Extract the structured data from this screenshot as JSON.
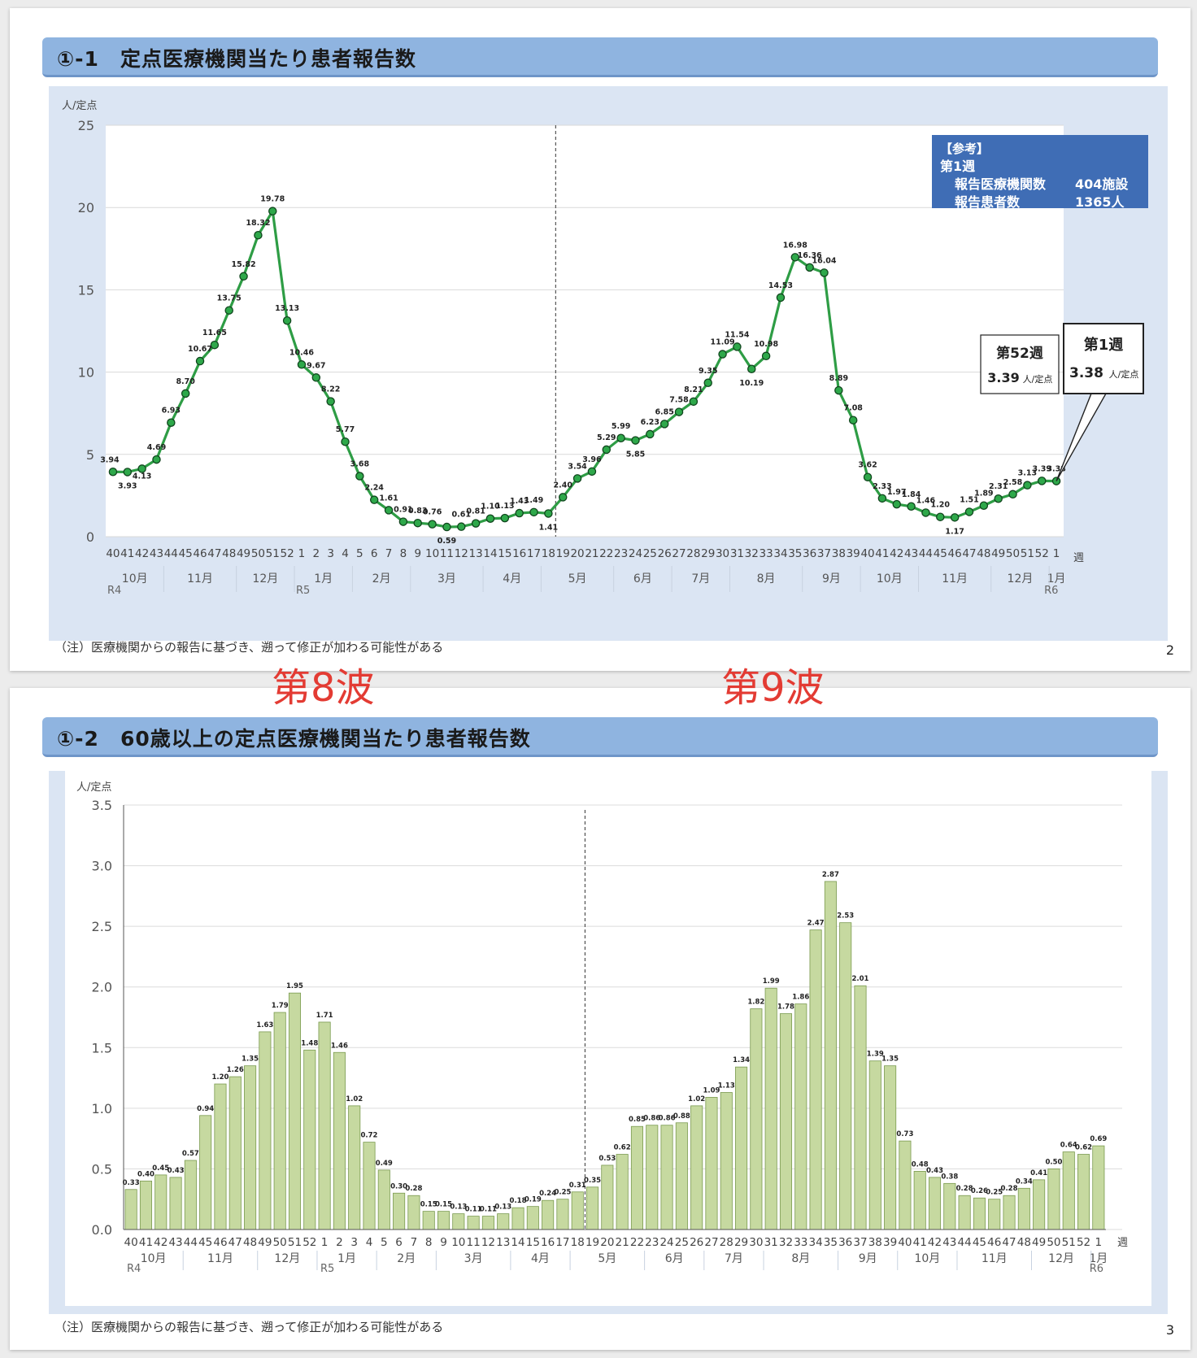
{
  "slide1": {
    "title": "①-1　定点医療機関当たり患者報告数",
    "note": "（注）医療機関からの報告に基づき、遡って修正が加わる可能性がある",
    "page": "2",
    "ref_box": {
      "line1": "【参考】",
      "line2": "第1週",
      "line3_label": "報告医療機関数",
      "line3_value": "404施設",
      "line4_label": "報告患者数",
      "line4_value": "1365人"
    },
    "callout_52": {
      "title": "第52週",
      "value": "3.39",
      "unit": "人/定点"
    },
    "callout_1": {
      "title": "第1週",
      "value": "3.38",
      "unit": "人/定点"
    }
  },
  "slide2": {
    "title": "①-2　60歳以上の定点医療機関当たり患者報告数",
    "note": "（注）医療機関からの報告に基づき、遡って修正が加わる可能性がある",
    "page": "3"
  },
  "waves": {
    "w8": "第8波",
    "w9": "第9波"
  },
  "colors": {
    "line": "#2e9d45",
    "marker": "#1f8a3a",
    "bar_fill": "#c6d9a0",
    "bar_stroke": "#7a9a4f",
    "ref_box": "#3f6db5",
    "wave_text": "#e33b33"
  },
  "chart_data": [
    {
      "type": "line",
      "ylabel": "人/定点",
      "xunit": "週",
      "ylim": [
        0,
        25
      ],
      "yticks": [
        0,
        5,
        10,
        15,
        20,
        25
      ],
      "grid": true,
      "weeks": [
        "40",
        "41",
        "42",
        "43",
        "44",
        "45",
        "46",
        "47",
        "48",
        "49",
        "50",
        "51",
        "52",
        "1",
        "2",
        "3",
        "4",
        "5",
        "6",
        "7",
        "8",
        "9",
        "10",
        "11",
        "12",
        "13",
        "14",
        "15",
        "16",
        "17",
        "18",
        "19",
        "20",
        "21",
        "22",
        "23",
        "24",
        "25",
        "26",
        "27",
        "28",
        "29",
        "30",
        "31",
        "32",
        "33",
        "34",
        "35",
        "36",
        "37",
        "38",
        "39",
        "40",
        "41",
        "42",
        "43",
        "44",
        "45",
        "46",
        "47",
        "48",
        "49",
        "50",
        "51",
        "52",
        "1"
      ],
      "values": [
        3.94,
        3.93,
        4.13,
        4.69,
        6.93,
        8.7,
        10.67,
        11.65,
        13.75,
        15.82,
        18.32,
        19.78,
        13.13,
        10.46,
        9.67,
        8.22,
        5.77,
        3.68,
        2.24,
        1.61,
        0.91,
        0.83,
        0.76,
        0.59,
        0.61,
        0.81,
        1.1,
        1.13,
        1.43,
        1.49,
        1.41,
        2.4,
        3.54,
        3.96,
        5.29,
        5.99,
        5.85,
        6.23,
        6.85,
        7.58,
        8.21,
        9.35,
        11.09,
        11.54,
        10.19,
        10.98,
        14.53,
        16.98,
        16.36,
        16.04,
        8.89,
        7.08,
        3.62,
        2.33,
        1.97,
        1.84,
        1.46,
        1.2,
        1.17,
        1.51,
        1.89,
        2.31,
        2.58,
        3.13,
        3.39,
        3.38
      ],
      "month_labels": [
        "10月",
        "11月",
        "12月",
        "1月",
        "2月",
        "3月",
        "4月",
        "5月",
        "6月",
        "7月",
        "8月",
        "9月",
        "10月",
        "11月",
        "12月",
        "1月"
      ],
      "month_start_index": [
        0,
        4,
        9,
        13,
        17,
        21,
        26,
        30,
        35,
        39,
        43,
        48,
        52,
        56,
        61,
        65
      ],
      "month_end_index": [
        3,
        8,
        12,
        16,
        20,
        25,
        29,
        34,
        38,
        42,
        47,
        51,
        55,
        60,
        64,
        65
      ],
      "year_labels": [
        "R4",
        "R5",
        "R6"
      ],
      "year_index": [
        0,
        13,
        65
      ],
      "divider_index": 30.5
    },
    {
      "type": "bar",
      "ylabel": "人/定点",
      "xunit": "週",
      "ylim": [
        0,
        3.5
      ],
      "yticks": [
        "0.0",
        "0.5",
        "1.0",
        "1.5",
        "2.0",
        "2.5",
        "3.0",
        "3.5"
      ],
      "grid": true,
      "weeks": [
        "40",
        "41",
        "42",
        "43",
        "44",
        "45",
        "46",
        "47",
        "48",
        "49",
        "50",
        "51",
        "52",
        "1",
        "2",
        "3",
        "4",
        "5",
        "6",
        "7",
        "8",
        "9",
        "10",
        "11",
        "12",
        "13",
        "14",
        "15",
        "16",
        "17",
        "18",
        "19",
        "20",
        "21",
        "22",
        "23",
        "24",
        "25",
        "26",
        "27",
        "28",
        "29",
        "30",
        "31",
        "32",
        "33",
        "34",
        "35",
        "36",
        "37",
        "38",
        "39",
        "40",
        "41",
        "42",
        "43",
        "44",
        "45",
        "46",
        "47",
        "48",
        "49",
        "50",
        "51",
        "52",
        "1"
      ],
      "values": [
        0.33,
        0.4,
        0.45,
        0.43,
        0.57,
        0.94,
        1.2,
        1.26,
        1.35,
        1.63,
        1.79,
        1.95,
        1.48,
        1.71,
        1.46,
        1.02,
        0.72,
        0.49,
        0.3,
        0.28,
        0.15,
        0.15,
        0.13,
        0.11,
        0.11,
        0.13,
        0.18,
        0.19,
        0.24,
        0.25,
        0.31,
        0.35,
        0.53,
        0.62,
        0.85,
        0.86,
        0.86,
        0.88,
        1.02,
        1.09,
        1.13,
        1.34,
        1.82,
        1.99,
        1.78,
        1.86,
        2.47,
        2.87,
        2.53,
        2.01,
        1.39,
        1.35,
        0.73,
        0.48,
        0.43,
        0.38,
        0.28,
        0.26,
        0.25,
        0.28,
        0.34,
        0.41,
        0.5,
        0.64,
        0.62,
        0.69
      ],
      "month_labels": [
        "10月",
        "11月",
        "12月",
        "1月",
        "2月",
        "3月",
        "4月",
        "5月",
        "6月",
        "7月",
        "8月",
        "9月",
        "10月",
        "11月",
        "12月",
        "1月"
      ],
      "month_start_index": [
        0,
        4,
        9,
        13,
        17,
        21,
        26,
        30,
        35,
        39,
        43,
        48,
        52,
        56,
        61,
        65
      ],
      "month_end_index": [
        3,
        8,
        12,
        16,
        20,
        25,
        29,
        34,
        38,
        42,
        47,
        51,
        55,
        60,
        64,
        65
      ],
      "year_labels": [
        "R4",
        "R5",
        "R6"
      ],
      "year_index": [
        0,
        13,
        65
      ],
      "divider_index": 30.5
    }
  ]
}
